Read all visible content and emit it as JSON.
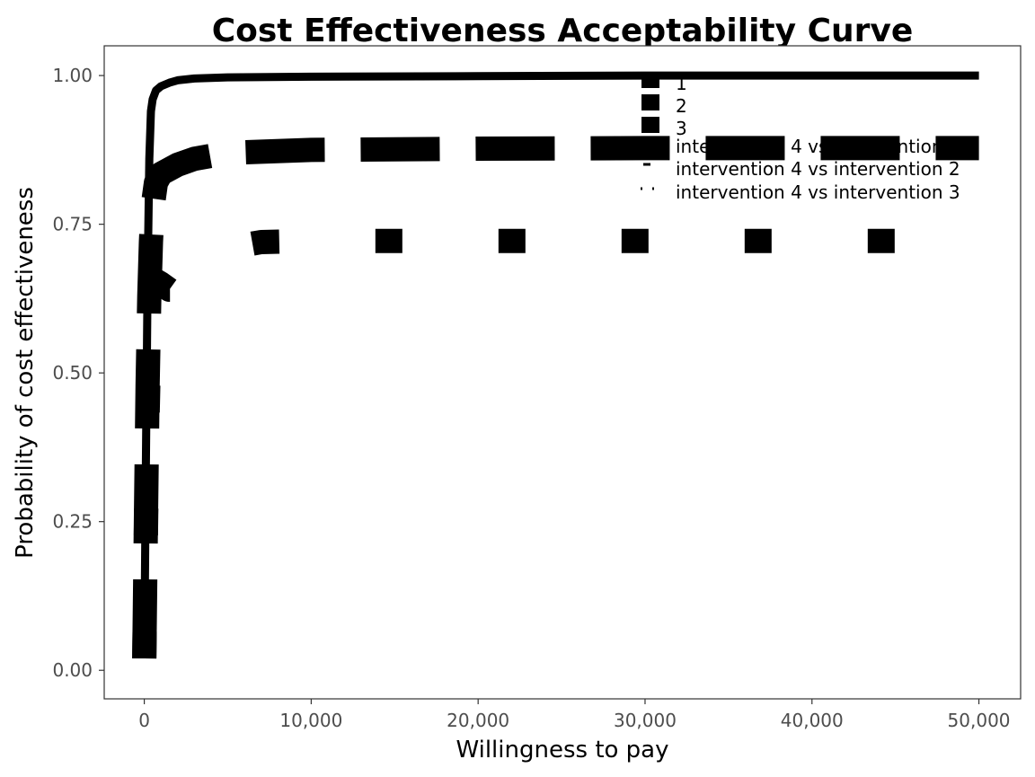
{
  "chart_data": {
    "type": "line",
    "title": "Cost Effectiveness Acceptability Curve",
    "xlabel": "Willingness to pay",
    "ylabel": "Probability of cost effectiveness",
    "xlim": [
      -2400,
      52500
    ],
    "ylim": [
      -0.048,
      1.05
    ],
    "x_ticks": [
      0,
      10000,
      20000,
      30000,
      40000,
      50000
    ],
    "x_tick_labels": [
      "0",
      "10,000",
      "20,000",
      "30,000",
      "40,000",
      "50,000"
    ],
    "y_ticks": [
      0,
      0.25,
      0.5,
      0.75,
      1.0
    ],
    "y_tick_labels": [
      "0.00",
      "0.25",
      "0.50",
      "0.75",
      "1.00"
    ],
    "grid": false,
    "legend_position": "top-right",
    "legend_entries": [
      "1",
      "2",
      "3",
      "intervention 4 vs intervention 1",
      "intervention 4 vs intervention 2",
      "intervention 4 vs intervention 3"
    ],
    "series": [
      {
        "name": "intervention 4 vs intervention 1",
        "linestyle": "solid",
        "x": [
          0,
          100,
          200,
          300,
          400,
          500,
          700,
          1000,
          1500,
          2000,
          3000,
          5000,
          10000,
          20000,
          30000,
          40000,
          50000
        ],
        "y": [
          0.02,
          0.35,
          0.66,
          0.86,
          0.94,
          0.96,
          0.975,
          0.982,
          0.988,
          0.992,
          0.995,
          0.997,
          0.998,
          0.999,
          1.0,
          1.0,
          1.0
        ]
      },
      {
        "name": "intervention 4 vs intervention 2",
        "linestyle": "dashed",
        "x": [
          0,
          100,
          200,
          300,
          400,
          500,
          700,
          1000,
          2000,
          3000,
          4000,
          5000,
          10000,
          20000,
          30000,
          40000,
          50000
        ],
        "y": [
          0.02,
          0.25,
          0.48,
          0.63,
          0.72,
          0.78,
          0.82,
          0.835,
          0.85,
          0.86,
          0.865,
          0.87,
          0.875,
          0.877,
          0.878,
          0.878,
          0.878
        ]
      },
      {
        "name": "intervention 4 vs intervention 3",
        "linestyle": "dotted",
        "x": [
          0,
          100,
          200,
          300,
          400,
          500,
          700,
          1000,
          1500,
          2000,
          6000,
          7000,
          10000,
          20000,
          30000,
          40000,
          50000
        ],
        "y": [
          0.02,
          0.23,
          0.43,
          0.56,
          0.62,
          0.65,
          0.655,
          0.65,
          0.64,
          0.64,
          0.715,
          0.72,
          0.722,
          0.722,
          0.722,
          0.722,
          0.722
        ]
      }
    ]
  }
}
